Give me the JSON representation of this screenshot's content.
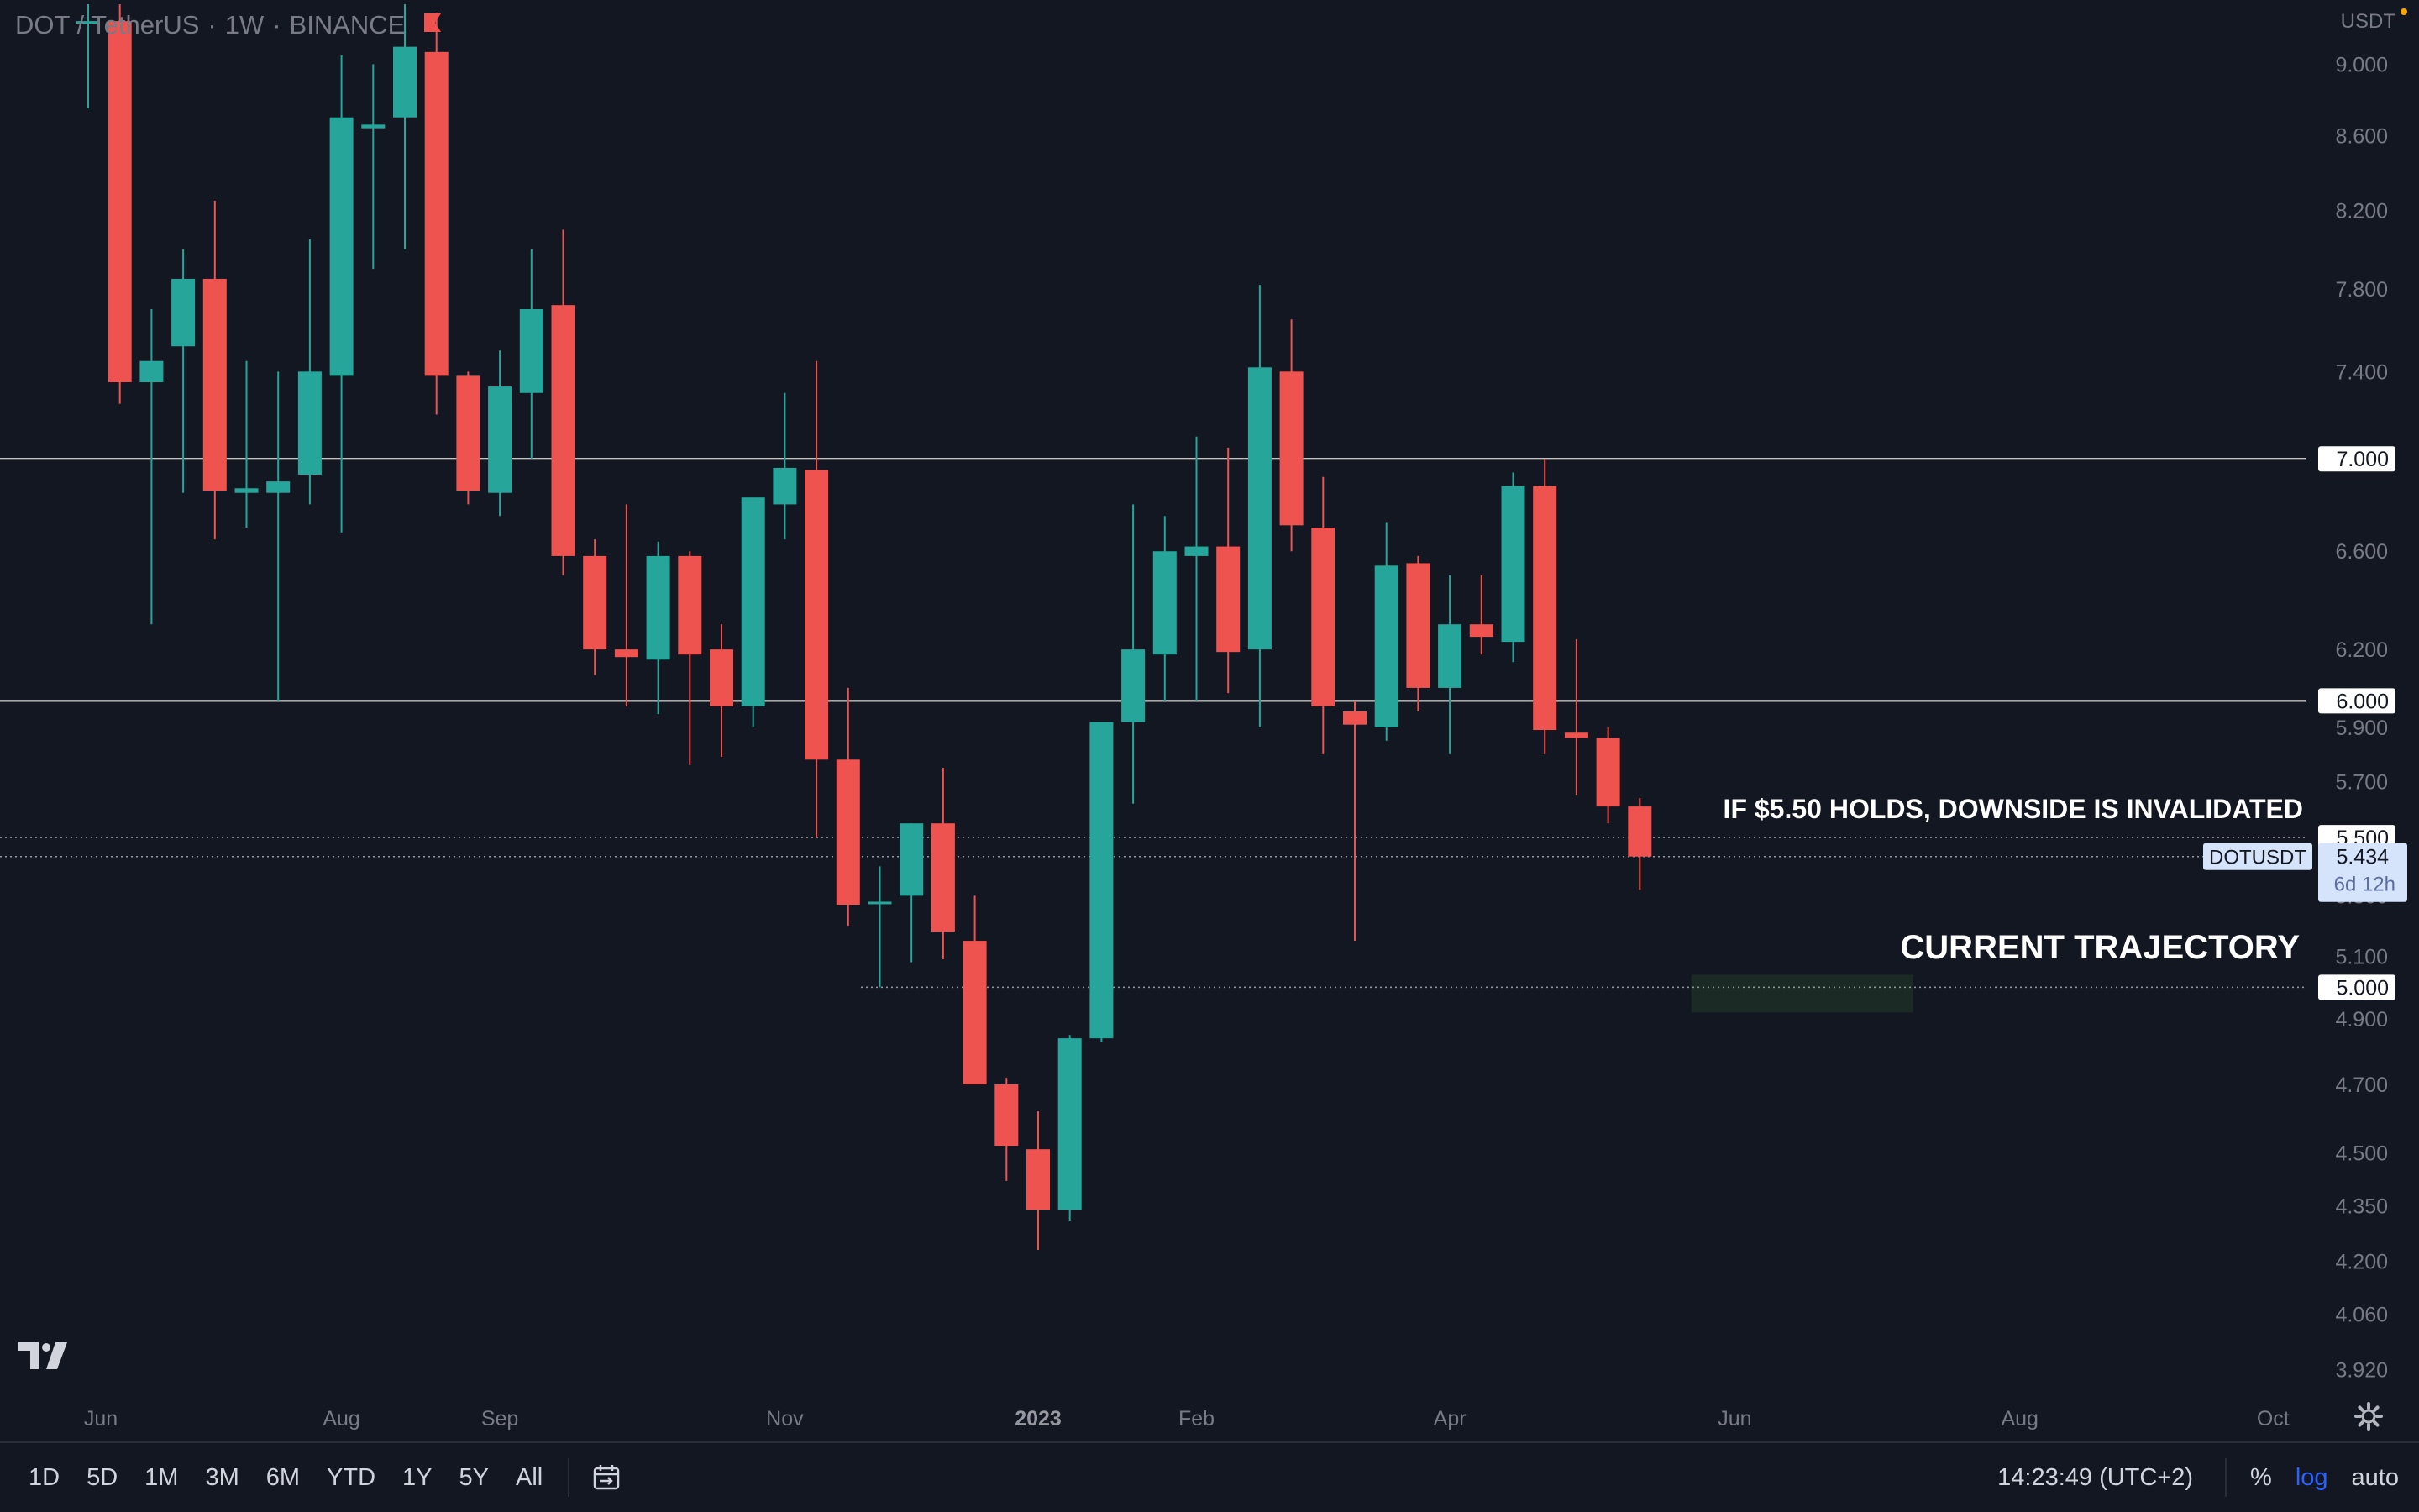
{
  "header": {
    "symbol": "DOT / TetherUS",
    "interval": "1W",
    "exchange": "BINANCE",
    "sep": "·"
  },
  "price_scale": {
    "currency": "USDT",
    "ticks": [
      "9.000",
      "8.600",
      "8.200",
      "7.800",
      "7.400",
      "7.000",
      "6.600",
      "6.200",
      "6.000",
      "5.900",
      "5.700",
      "5.500",
      "5.300",
      "5.100",
      "5.000",
      "4.900",
      "4.700",
      "4.500",
      "4.350",
      "4.200",
      "4.060",
      "3.920"
    ],
    "level_labels": [
      {
        "value": 7.0,
        "text": "7.000"
      },
      {
        "value": 6.0,
        "text": "6.000"
      },
      {
        "value": 5.5,
        "text": "5.500"
      },
      {
        "value": 5.0,
        "text": "5.000"
      }
    ],
    "last_price": {
      "symbol": "DOTUSDT",
      "price": "5.434",
      "countdown": "6d 12h"
    }
  },
  "time_axis": {
    "labels": [
      {
        "text": "Jun",
        "idx": 0
      },
      {
        "text": "Aug",
        "idx": 8
      },
      {
        "text": "Sep",
        "idx": 13
      },
      {
        "text": "Nov",
        "idx": 22
      },
      {
        "text": "2023",
        "idx": 30,
        "bold": true
      },
      {
        "text": "Feb",
        "idx": 35
      },
      {
        "text": "Apr",
        "idx": 43
      },
      {
        "text": "Jun",
        "idx": 52
      },
      {
        "text": "Aug",
        "idx": 61
      },
      {
        "text": "Oct",
        "idx": 69
      }
    ]
  },
  "annotations": {
    "note1": "IF $5.50 HOLDS, DOWNSIDE IS INVALIDATED",
    "note2": "CURRENT TRAJECTORY"
  },
  "colors": {
    "background": "#131722",
    "up": "#26a69a",
    "down": "#ef5350",
    "level_line": "#ffffff",
    "grid_text": "#787b86",
    "accent": "#2962ff",
    "target_box": "#1b2a25"
  },
  "chart_data": {
    "type": "candlestick",
    "symbol": "DOTUSDT",
    "interval": "1W",
    "scale": "log",
    "ylim": [
      3.85,
      9.35
    ],
    "horizontal_levels": [
      7.0,
      6.0
    ],
    "dotted_levels": [
      5.5,
      5.434,
      5.0
    ],
    "target_zone": {
      "from_week": 51,
      "to_week": 58,
      "low": 4.92,
      "high": 5.04
    },
    "candles": [
      {
        "o": 9.25,
        "h": 9.35,
        "l": 8.75,
        "c": 9.25
      },
      {
        "o": 9.25,
        "h": 9.35,
        "l": 7.25,
        "c": 7.35
      },
      {
        "o": 7.35,
        "h": 7.7,
        "l": 6.3,
        "c": 7.45
      },
      {
        "o": 7.52,
        "h": 8.0,
        "l": 6.85,
        "c": 7.85
      },
      {
        "o": 7.85,
        "h": 8.25,
        "l": 6.65,
        "c": 6.86
      },
      {
        "o": 6.85,
        "h": 7.45,
        "l": 6.7,
        "c": 6.87
      },
      {
        "o": 6.85,
        "h": 7.4,
        "l": 6.0,
        "c": 6.9
      },
      {
        "o": 6.93,
        "h": 8.05,
        "l": 6.8,
        "c": 7.4
      },
      {
        "o": 7.38,
        "h": 9.05,
        "l": 6.68,
        "c": 8.7
      },
      {
        "o": 8.64,
        "h": 9.0,
        "l": 7.9,
        "c": 8.66
      },
      {
        "o": 8.7,
        "h": 9.35,
        "l": 8.0,
        "c": 9.1
      },
      {
        "o": 9.07,
        "h": 9.3,
        "l": 7.2,
        "c": 7.38
      },
      {
        "o": 7.38,
        "h": 7.4,
        "l": 6.8,
        "c": 6.86
      },
      {
        "o": 6.85,
        "h": 7.5,
        "l": 6.75,
        "c": 7.33
      },
      {
        "o": 7.3,
        "h": 8.0,
        "l": 7.0,
        "c": 7.7
      },
      {
        "o": 7.72,
        "h": 8.1,
        "l": 6.5,
        "c": 6.58
      },
      {
        "o": 6.58,
        "h": 6.65,
        "l": 6.1,
        "c": 6.2
      },
      {
        "o": 6.2,
        "h": 6.8,
        "l": 5.98,
        "c": 6.17
      },
      {
        "o": 6.16,
        "h": 6.64,
        "l": 5.95,
        "c": 6.58
      },
      {
        "o": 6.58,
        "h": 6.6,
        "l": 5.76,
        "c": 6.18
      },
      {
        "o": 6.2,
        "h": 6.3,
        "l": 5.79,
        "c": 5.98
      },
      {
        "o": 5.98,
        "h": 6.8,
        "l": 5.9,
        "c": 6.83
      },
      {
        "o": 6.8,
        "h": 7.3,
        "l": 6.65,
        "c": 6.96
      },
      {
        "o": 6.95,
        "h": 7.45,
        "l": 5.5,
        "c": 5.78
      },
      {
        "o": 5.78,
        "h": 6.05,
        "l": 5.2,
        "c": 5.27
      },
      {
        "o": 5.28,
        "h": 5.4,
        "l": 5.0,
        "c": 5.28
      },
      {
        "o": 5.3,
        "h": 5.55,
        "l": 5.08,
        "c": 5.55
      },
      {
        "o": 5.55,
        "h": 5.75,
        "l": 5.09,
        "c": 5.18
      },
      {
        "o": 5.15,
        "h": 5.3,
        "l": 4.7,
        "c": 4.7
      },
      {
        "o": 4.7,
        "h": 4.72,
        "l": 4.42,
        "c": 4.52
      },
      {
        "o": 4.51,
        "h": 4.62,
        "l": 4.23,
        "c": 4.34
      },
      {
        "o": 4.34,
        "h": 4.85,
        "l": 4.31,
        "c": 4.84
      },
      {
        "o": 4.84,
        "h": 5.92,
        "l": 4.83,
        "c": 5.92
      },
      {
        "o": 5.92,
        "h": 6.8,
        "l": 5.62,
        "c": 6.2
      },
      {
        "o": 6.18,
        "h": 6.75,
        "l": 6.0,
        "c": 6.6
      },
      {
        "o": 6.58,
        "h": 7.1,
        "l": 6.0,
        "c": 6.62
      },
      {
        "o": 6.62,
        "h": 7.05,
        "l": 6.03,
        "c": 6.19
      },
      {
        "o": 6.2,
        "h": 7.82,
        "l": 5.9,
        "c": 7.42
      },
      {
        "o": 7.4,
        "h": 7.65,
        "l": 6.6,
        "c": 6.71
      },
      {
        "o": 6.7,
        "h": 6.92,
        "l": 5.8,
        "c": 5.98
      },
      {
        "o": 5.96,
        "h": 6.0,
        "l": 5.15,
        "c": 5.91
      },
      {
        "o": 5.9,
        "h": 6.72,
        "l": 5.85,
        "c": 6.54
      },
      {
        "o": 6.55,
        "h": 6.58,
        "l": 5.96,
        "c": 6.05
      },
      {
        "o": 6.05,
        "h": 6.5,
        "l": 5.8,
        "c": 6.3
      },
      {
        "o": 6.3,
        "h": 6.5,
        "l": 6.18,
        "c": 6.25
      },
      {
        "o": 6.23,
        "h": 6.94,
        "l": 6.15,
        "c": 6.88
      },
      {
        "o": 6.88,
        "h": 7.0,
        "l": 5.8,
        "c": 5.89
      },
      {
        "o": 5.88,
        "h": 6.24,
        "l": 5.65,
        "c": 5.86
      },
      {
        "o": 5.86,
        "h": 5.9,
        "l": 5.55,
        "c": 5.61
      },
      {
        "o": 5.61,
        "h": 5.64,
        "l": 5.32,
        "c": 5.434
      }
    ]
  },
  "toolbar": {
    "ranges": [
      "1D",
      "5D",
      "1M",
      "3M",
      "6M",
      "YTD",
      "1Y",
      "5Y",
      "All"
    ],
    "time": "14:23:49 (UTC+2)",
    "percent_label": "%",
    "log_label": "log",
    "auto_label": "auto"
  }
}
